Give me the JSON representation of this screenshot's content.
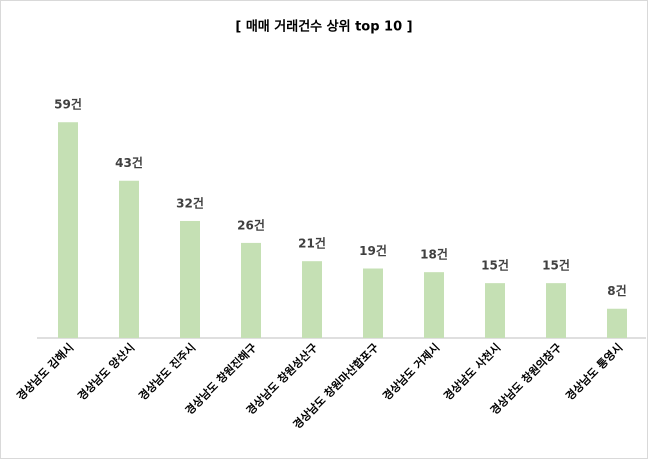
{
  "chart_data": {
    "type": "bar",
    "title": "[ 매매 거래건수 상위 top 10 ]",
    "categories": [
      "경상남도 김해시",
      "경상남도 양산시",
      "경상남도 진주시",
      "경상남도 창원진해구",
      "경상남도 창원성산구",
      "경상남도 창원마산합포구",
      "경상남도 거제시",
      "경상남도 사천시",
      "경상남도 창원의창구",
      "경상남도 통영시"
    ],
    "values": [
      59,
      43,
      32,
      26,
      21,
      19,
      18,
      15,
      15,
      8
    ],
    "value_labels": [
      "59건",
      "43건",
      "32건",
      "26건",
      "21건",
      "19건",
      "18건",
      "15건",
      "15건",
      "8건"
    ],
    "color": "#c5e0b4",
    "ylim": [
      0,
      70
    ]
  }
}
